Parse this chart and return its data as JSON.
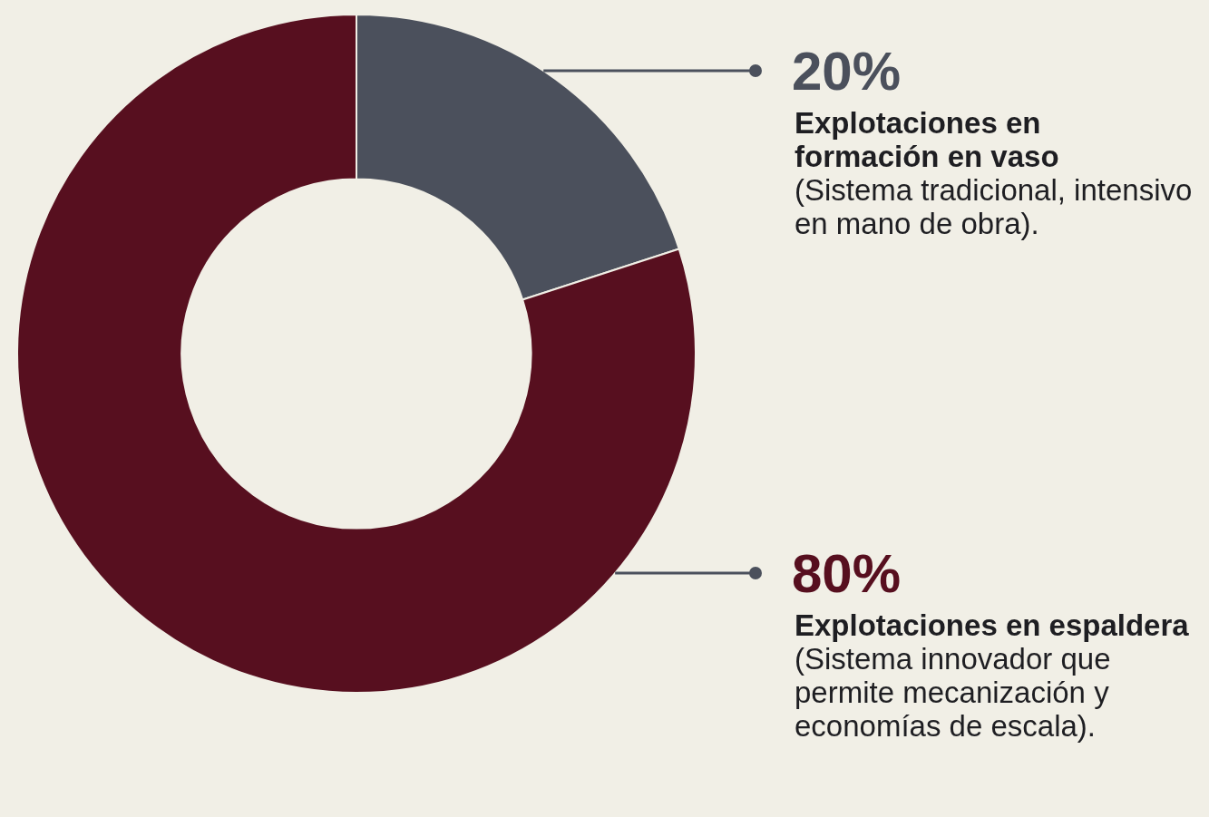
{
  "chart_data": {
    "type": "donut",
    "categories": [
      "Explotaciones en formación en vaso",
      "Explotaciones en espaldera"
    ],
    "values": [
      20,
      80
    ],
    "colors": [
      "#4b505c",
      "#570f1f"
    ],
    "value_labels": [
      "20%",
      "80%"
    ],
    "annotations": [
      "(Sistema tradicional, intensivo en mano de obra).",
      "(Sistema innovador que permite mecanización y economías de escala)."
    ],
    "legend": false
  }
}
